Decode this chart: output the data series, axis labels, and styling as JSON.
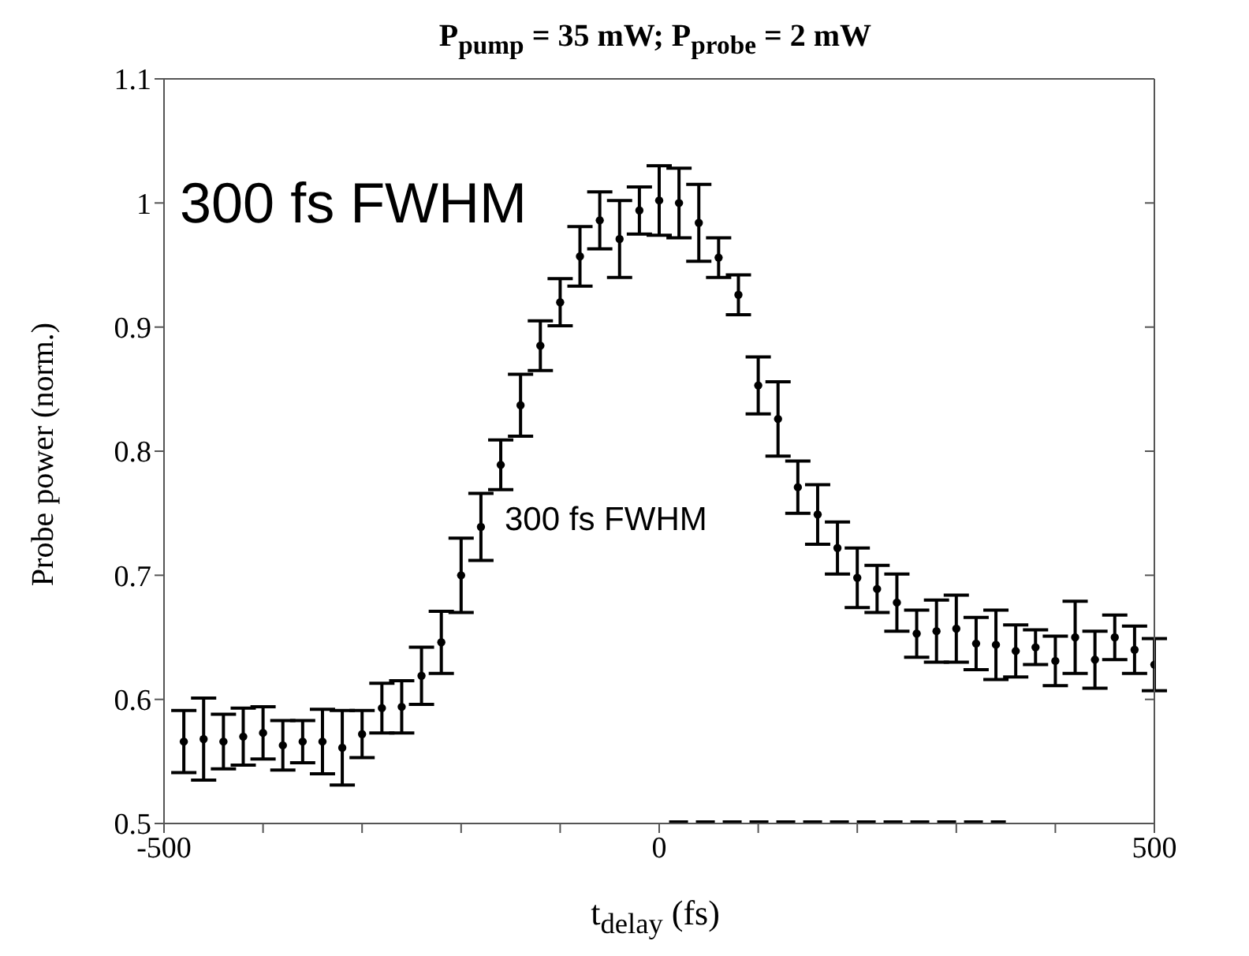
{
  "chart_data": {
    "type": "scatter",
    "title": "P$_{pump}$ = 35 mW; P$_{probe}$ = 2 mW",
    "xlabel": "t$_{delay}$ (fs)",
    "ylabel": "Probe power (norm.)",
    "annotations": [
      "300 fs FWHM",
      "300 fs FWHM"
    ],
    "x": [
      -480,
      -460,
      -440,
      -420,
      -400,
      -380,
      -360,
      -340,
      -320,
      -300,
      -280,
      -260,
      -240,
      -220,
      -200,
      -180,
      -160,
      -140,
      -120,
      -100,
      -80,
      -60,
      -40,
      -20,
      0,
      20,
      40,
      60,
      80,
      100,
      120,
      140,
      160,
      180,
      200,
      220,
      240,
      260,
      280,
      300,
      320,
      340,
      360,
      380,
      400,
      420,
      440,
      460,
      480,
      500
    ],
    "xlim": [
      -500,
      500
    ],
    "xticks": [
      -500,
      {
        "value": -400,
        "label": null
      },
      {
        "value": -300,
        "label": null
      },
      {
        "value": -200,
        "label": null
      },
      {
        "value": -100,
        "label": null
      },
      0,
      {
        "value": 100,
        "label": null
      },
      {
        "value": 200,
        "label": null
      },
      {
        "value": 300,
        "label": null
      },
      {
        "value": 400,
        "label": null
      },
      500
    ],
    "ylim": [
      0.5,
      1.1
    ],
    "yticks": [
      0.5,
      0.6,
      0.7,
      0.8,
      0.9,
      1,
      1.1
    ],
    "series": [
      {
        "color": "#000000",
        "marker": "circle",
        "values": [
          0.566,
          0.568,
          0.566,
          0.57,
          0.573,
          0.563,
          0.566,
          0.566,
          0.561,
          0.572,
          0.593,
          0.594,
          0.619,
          0.646,
          0.7,
          0.739,
          0.789,
          0.837,
          0.885,
          0.92,
          0.957,
          0.986,
          0.971,
          0.994,
          1.002,
          1.0,
          0.984,
          0.956,
          0.926,
          0.853,
          0.826,
          0.771,
          0.749,
          0.722,
          0.698,
          0.689,
          0.678,
          0.653,
          0.655,
          0.657,
          0.645,
          0.644,
          0.639,
          0.642,
          0.631,
          0.65,
          0.632,
          0.65,
          0.64,
          0.628
        ],
        "errors": [
          0.025,
          0.033,
          0.022,
          0.023,
          0.021,
          0.02,
          0.017,
          0.026,
          0.03,
          0.019,
          0.02,
          0.021,
          0.023,
          0.025,
          0.03,
          0.027,
          0.02,
          0.025,
          0.02,
          0.019,
          0.024,
          0.023,
          0.031,
          0.019,
          0.028,
          0.028,
          0.031,
          0.016,
          0.016,
          0.023,
          0.03,
          0.021,
          0.024,
          0.021,
          0.024,
          0.019,
          0.023,
          0.019,
          0.025,
          0.027,
          0.021,
          0.028,
          0.021,
          0.014,
          0.02,
          0.029,
          0.023,
          0.018,
          0.019,
          0.021
        ]
      },
      {
        "type": "line",
        "color": "#000000",
        "line_style": "dashed",
        "x": [
          10,
          350
        ],
        "values": [
          0.5,
          0.5
        ]
      }
    ]
  }
}
